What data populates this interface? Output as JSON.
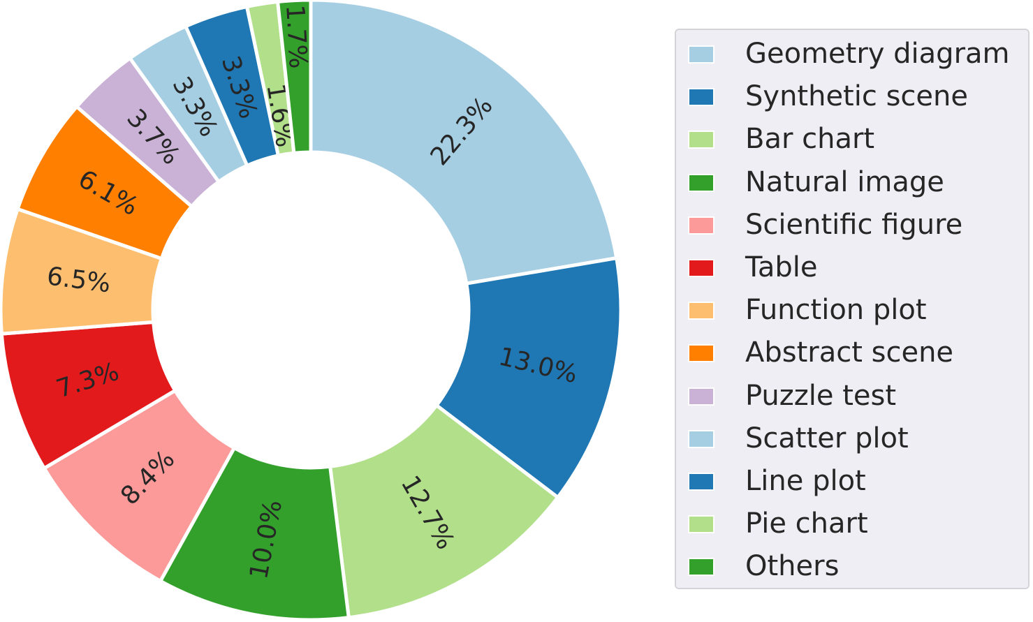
{
  "chart_data": {
    "type": "pie",
    "variant": "donut",
    "start_angle_deg": 90,
    "direction": "clockwise",
    "legend_placement": "right",
    "categories": [
      "Geometry diagram",
      "Synthetic scene",
      "Bar chart",
      "Natural image",
      "Scientific figure",
      "Table",
      "Function plot",
      "Abstract scene",
      "Puzzle test",
      "Scatter plot",
      "Line plot",
      "Pie chart",
      "Others"
    ],
    "values": [
      22.3,
      13.0,
      12.7,
      10.0,
      8.4,
      7.3,
      6.5,
      6.1,
      3.7,
      3.3,
      3.3,
      1.6,
      1.7
    ],
    "labels": [
      "22.3%",
      "13.0%",
      "12.7%",
      "10.0%",
      "8.4%",
      "7.3%",
      "6.5%",
      "6.1%",
      "3.7%",
      "3.3%",
      "3.3%",
      "1.6%",
      "1.7%"
    ],
    "colors": [
      "#a6cee3",
      "#1f78b4",
      "#b2df8a",
      "#33a02c",
      "#fb9a99",
      "#e31a1c",
      "#fdbf6f",
      "#ff7f00",
      "#cab2d6",
      "#a6cee3",
      "#1f78b4",
      "#b2df8a",
      "#33a02c"
    ]
  }
}
